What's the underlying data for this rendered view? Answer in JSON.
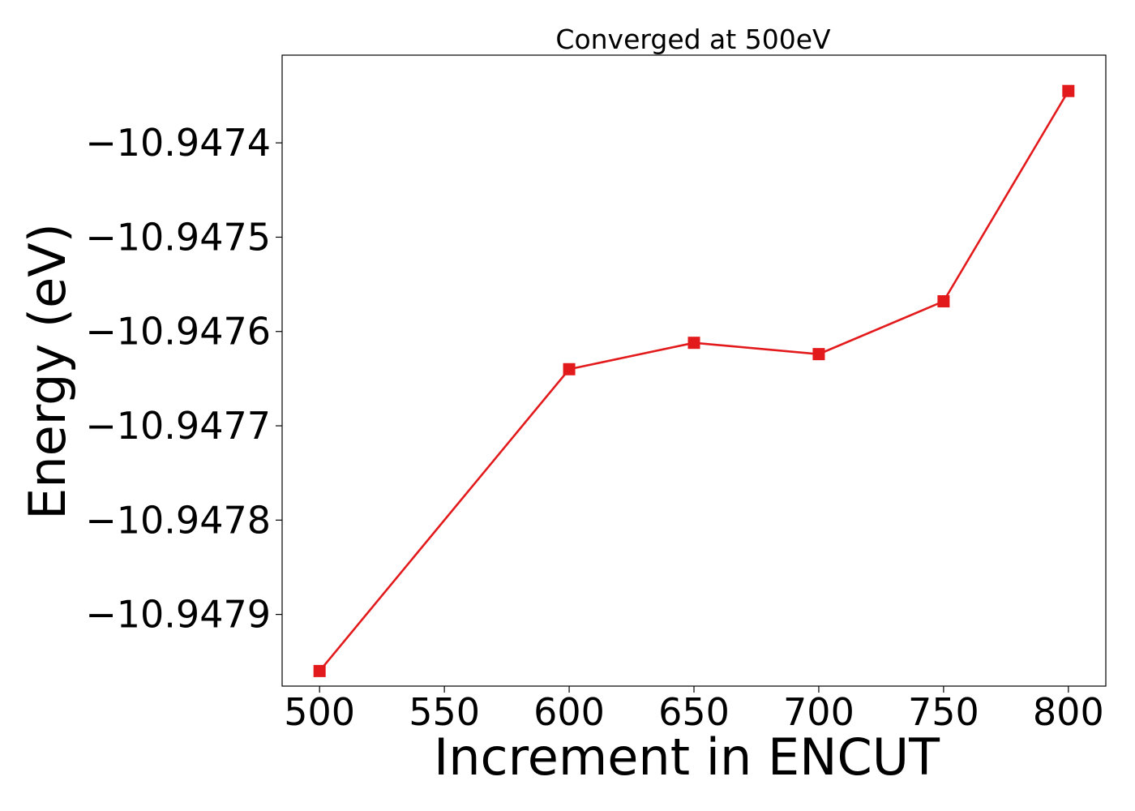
{
  "chart_data": {
    "type": "line",
    "title": "Converged at 500eV",
    "xlabel": "Increment in ENCUT",
    "ylabel": "Energy (eV)",
    "x": [
      500,
      600,
      650,
      700,
      750,
      800
    ],
    "series": [
      {
        "values": [
          -10.94796,
          -10.94764,
          -10.947612,
          -10.947624,
          -10.947568,
          -10.947345
        ],
        "color": "#e31a1c",
        "marker": "square"
      }
    ],
    "xlim": [
      485,
      815
    ],
    "ylim": [
      -10.947976,
      -10.947307
    ],
    "xticks": [
      500,
      550,
      600,
      650,
      700,
      750,
      800
    ],
    "xtick_labels": [
      "500",
      "550",
      "600",
      "650",
      "700",
      "750",
      "800"
    ],
    "yticks": [
      -10.9479,
      -10.9478,
      -10.9477,
      -10.9476,
      -10.9475,
      -10.9474
    ],
    "ytick_labels": [
      "−10.9479",
      "−10.9478",
      "−10.9477",
      "−10.9476",
      "−10.9475",
      "−10.9474"
    ],
    "grid": false,
    "legend": "none"
  }
}
